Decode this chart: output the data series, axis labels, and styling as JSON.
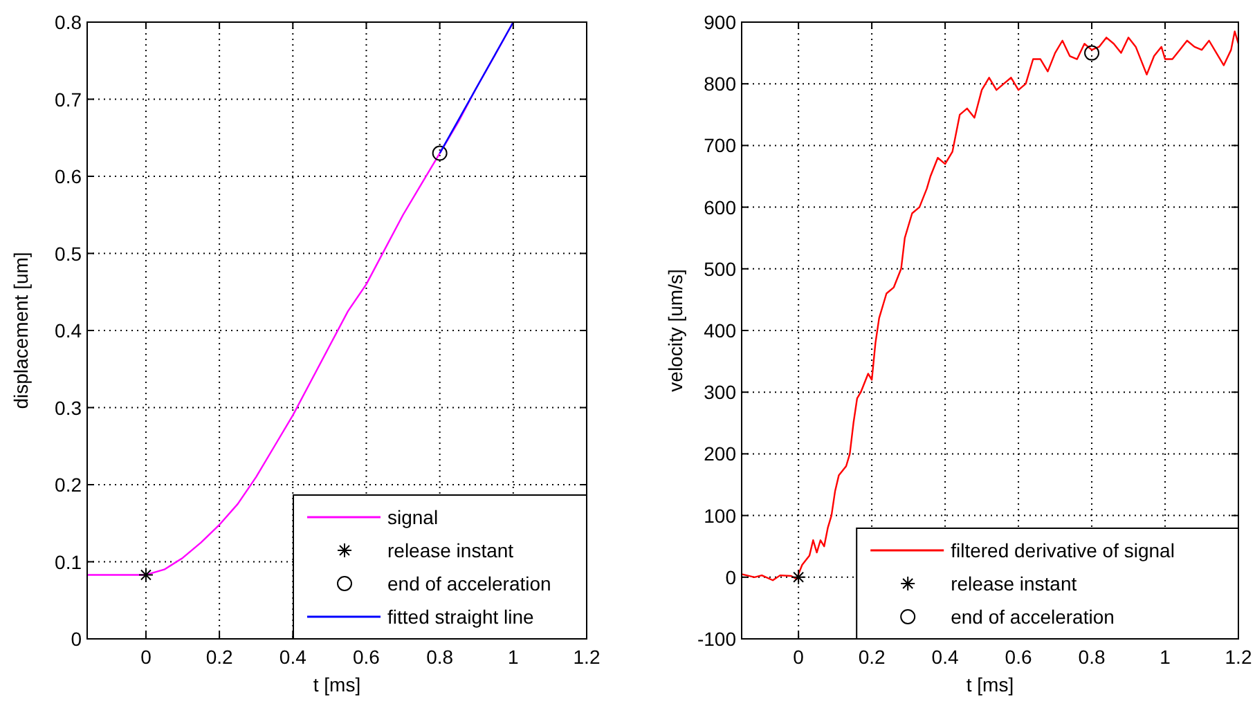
{
  "chart_data": [
    {
      "type": "line",
      "xlabel": "t [ms]",
      "ylabel": "displacement [um]",
      "xlim": [
        -0.16,
        1.2
      ],
      "ylim": [
        0,
        0.8
      ],
      "xticks": [
        0,
        0.2,
        0.4,
        0.6,
        0.8,
        1,
        1.2
      ],
      "yticks": [
        0,
        0.1,
        0.2,
        0.3,
        0.4,
        0.5,
        0.6,
        0.7,
        0.8
      ],
      "grid": true,
      "legend": "bottom right",
      "series": [
        {
          "name": "signal",
          "color": "#ff00ff",
          "x": [
            -0.16,
            0,
            0.05,
            0.1,
            0.15,
            0.2,
            0.25,
            0.3,
            0.35,
            0.4,
            0.45,
            0.5,
            0.55,
            0.6,
            0.65,
            0.7,
            0.75,
            0.8,
            0.85,
            0.9,
            0.95,
            1.0
          ],
          "values": [
            0.083,
            0.083,
            0.09,
            0.105,
            0.125,
            0.148,
            0.175,
            0.21,
            0.25,
            0.29,
            0.335,
            0.38,
            0.425,
            0.46,
            0.505,
            0.55,
            0.59,
            0.63,
            0.67,
            0.715,
            0.757,
            0.8
          ]
        },
        {
          "name": "release instant",
          "type": "scatter",
          "color": "#000000",
          "marker": "cross",
          "x": [
            0
          ],
          "values": [
            0.083
          ]
        },
        {
          "name": "end of acceleration",
          "type": "scatter",
          "color": "#000000",
          "marker": "circle",
          "x": [
            0.8
          ],
          "values": [
            0.63
          ]
        },
        {
          "name": "fitted straight line",
          "color": "#0000ff",
          "x": [
            0.8,
            1.0
          ],
          "values": [
            0.63,
            0.8
          ]
        }
      ]
    },
    {
      "type": "line",
      "xlabel": "t [ms]",
      "ylabel": "velocity [um/s]",
      "xlim": [
        -0.155,
        1.2
      ],
      "ylim": [
        -100,
        900
      ],
      "xticks": [
        0,
        0.2,
        0.4,
        0.6,
        0.8,
        1,
        1.2
      ],
      "yticks": [
        -100,
        0,
        100,
        200,
        300,
        400,
        500,
        600,
        700,
        800,
        900
      ],
      "grid": true,
      "legend": "bottom right",
      "series": [
        {
          "name": "filtered derivative of signal",
          "color": "#ff0000",
          "x": [
            -0.155,
            -0.12,
            -0.1,
            -0.07,
            -0.05,
            -0.02,
            -0.005,
            0,
            0.01,
            0.03,
            0.04,
            0.05,
            0.06,
            0.07,
            0.08,
            0.09,
            0.1,
            0.11,
            0.13,
            0.14,
            0.15,
            0.16,
            0.17,
            0.19,
            0.2,
            0.21,
            0.22,
            0.24,
            0.26,
            0.28,
            0.29,
            0.31,
            0.33,
            0.35,
            0.36,
            0.38,
            0.4,
            0.42,
            0.44,
            0.46,
            0.48,
            0.5,
            0.52,
            0.54,
            0.56,
            0.58,
            0.6,
            0.62,
            0.64,
            0.66,
            0.68,
            0.7,
            0.72,
            0.74,
            0.76,
            0.78,
            0.8,
            0.82,
            0.84,
            0.86,
            0.88,
            0.9,
            0.92,
            0.95,
            0.97,
            0.99,
            1.0,
            1.02,
            1.04,
            1.06,
            1.08,
            1.1,
            1.12,
            1.14,
            1.16,
            1.18,
            1.19,
            1.2
          ],
          "values": [
            5,
            0,
            3,
            -5,
            3,
            2,
            -3,
            5,
            20,
            35,
            60,
            40,
            60,
            50,
            80,
            100,
            140,
            165,
            180,
            200,
            250,
            290,
            300,
            330,
            320,
            380,
            420,
            460,
            470,
            500,
            550,
            590,
            600,
            630,
            650,
            680,
            670,
            690,
            750,
            760,
            745,
            790,
            810,
            790,
            800,
            810,
            790,
            800,
            840,
            840,
            820,
            850,
            870,
            845,
            840,
            865,
            855,
            860,
            875,
            865,
            850,
            875,
            860,
            815,
            845,
            860,
            840,
            840,
            855,
            870,
            860,
            855,
            870,
            850,
            830,
            855,
            885,
            865
          ]
        },
        {
          "name": "release instant",
          "type": "scatter",
          "color": "#000000",
          "marker": "cross",
          "x": [
            0
          ],
          "values": [
            0
          ]
        },
        {
          "name": "end of acceleration",
          "type": "scatter",
          "color": "#000000",
          "marker": "circle",
          "x": [
            0.8
          ],
          "values": [
            850
          ]
        }
      ]
    }
  ]
}
